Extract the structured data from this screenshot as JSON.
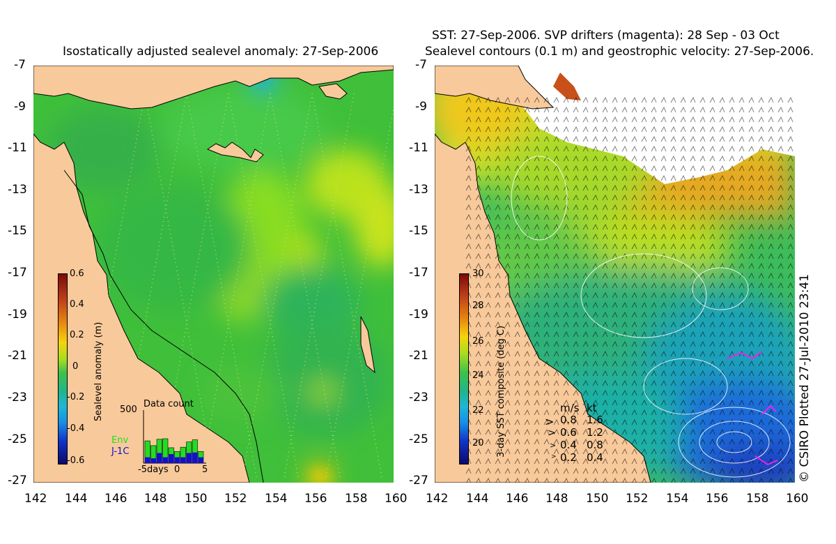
{
  "left_panel": {
    "title": "Isostatically adjusted sealevel anomaly: 27-Sep-2006",
    "colorbar": {
      "label": "Sealevel anomaly (m)",
      "ticks": [
        "0.6",
        "0.4",
        "0.2",
        "0",
        "-0.2",
        "-0.4",
        "-0.6"
      ]
    },
    "data_count": {
      "title": "Data count",
      "ymax": "500",
      "legend_env": "Env",
      "legend_j1c": "J-1C",
      "xlabel_left": "-5days",
      "xlabel_mid": "0",
      "xlabel_right": "5",
      "env_color": "#22dd22",
      "j1c_color": "#1111cc",
      "env_counts": [
        210,
        165,
        225,
        230,
        145,
        110,
        150,
        200,
        220,
        110
      ],
      "j1c_counts": [
        55,
        45,
        95,
        55,
        85,
        55,
        55,
        95,
        100,
        55
      ]
    }
  },
  "right_panel": {
    "title_line1": "SST: 27-Sep-2006. SVP drifters (magenta): 28 Sep - 03 Oct",
    "title_line2": "Sealevel contours (0.1 m) and geostrophic velocity: 27-Sep-2006.",
    "colorbar": {
      "label": "3-day SST composite (deg C)",
      "ticks": [
        "30",
        "28",
        "26",
        "24",
        "22",
        "20"
      ]
    },
    "velocity_legend": {
      "header_ms": "m/s",
      "header_kt": "kt",
      "rows": [
        {
          "ms": "0.8",
          "kt": "1.6"
        },
        {
          "ms": "0.6",
          "kt": "1.2"
        },
        {
          "ms": "0.4",
          "kt": "0.8"
        },
        {
          "ms": "0.2",
          "kt": "0.4"
        }
      ]
    }
  },
  "axes": {
    "lat_ticks": [
      "-7",
      "-9",
      "-11",
      "-13",
      "-15",
      "-17",
      "-19",
      "-21",
      "-23",
      "-25",
      "-27"
    ],
    "lon_ticks": [
      "142",
      "144",
      "146",
      "148",
      "150",
      "152",
      "154",
      "156",
      "158",
      "160"
    ]
  },
  "credit": "© CSIRO Plotted 27-Jul-2010 23:41",
  "colors": {
    "land": "#f8c99a",
    "sea_anomaly_base": "#33bb33",
    "sst_high": "#cc2200",
    "sst_low": "#1133aa"
  }
}
